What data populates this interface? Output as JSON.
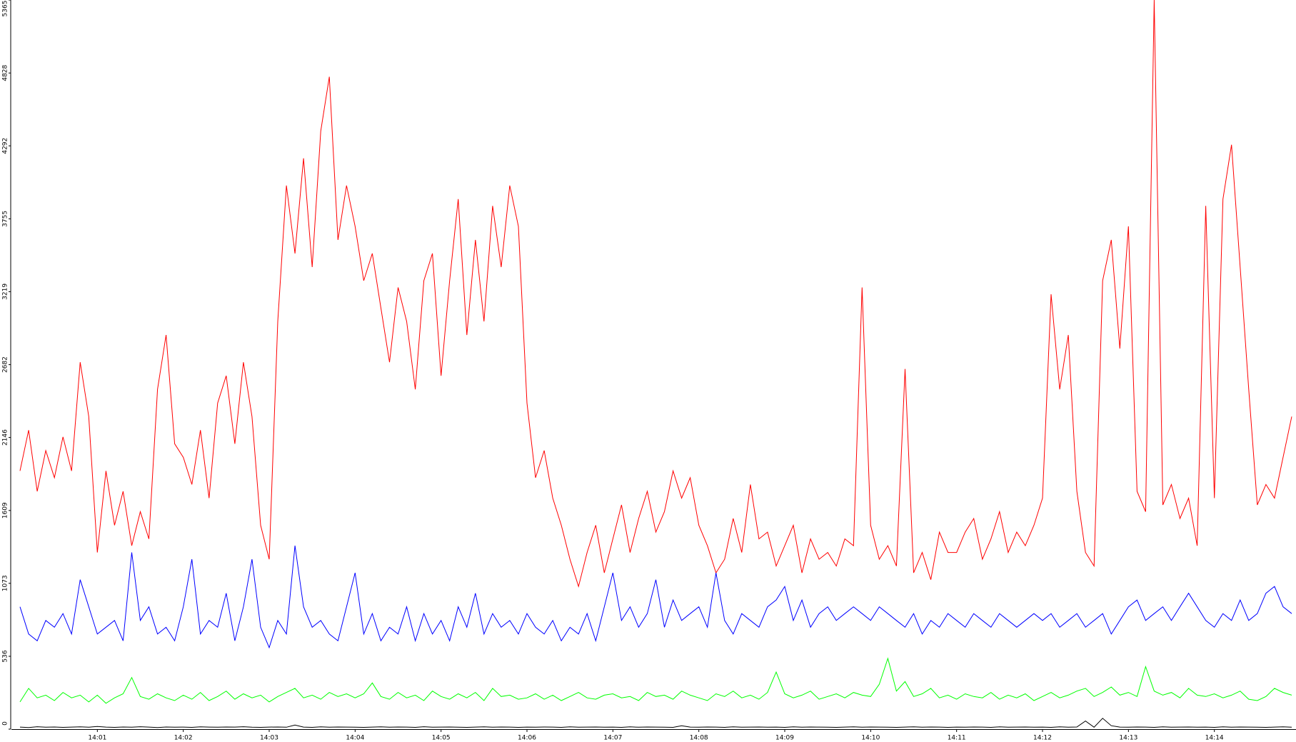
{
  "chart_data": {
    "type": "line",
    "xlim": [
      0,
      14.95
    ],
    "xticks": [
      {
        "value": 1,
        "label": "14:01"
      },
      {
        "value": 2,
        "label": "14:02"
      },
      {
        "value": 3,
        "label": "14:03"
      },
      {
        "value": 4,
        "label": "14:04"
      },
      {
        "value": 5,
        "label": "14:05"
      },
      {
        "value": 6,
        "label": "14:06"
      },
      {
        "value": 7,
        "label": "14:07"
      },
      {
        "value": 8,
        "label": "14:08"
      },
      {
        "value": 9,
        "label": "14:09"
      },
      {
        "value": 10,
        "label": "14:10"
      },
      {
        "value": 11,
        "label": "14:11"
      },
      {
        "value": 12,
        "label": "14:12"
      },
      {
        "value": 13,
        "label": "14:13"
      },
      {
        "value": 14,
        "label": "14:14"
      }
    ],
    "ylim": [
      0,
      5365
    ],
    "yticks": [
      0,
      536,
      1073,
      1609,
      2146,
      2682,
      3219,
      3755,
      4292,
      4828,
      5365
    ],
    "x": [
      0.1,
      0.2,
      0.3,
      0.4,
      0.5,
      0.6,
      0.7,
      0.8,
      0.9,
      1.0,
      1.1,
      1.2,
      1.3,
      1.4,
      1.5,
      1.6,
      1.7,
      1.8,
      1.9,
      2.0,
      2.1,
      2.2,
      2.3,
      2.4,
      2.5,
      2.6,
      2.7,
      2.8,
      2.9,
      3.0,
      3.1,
      3.2,
      3.3,
      3.4,
      3.5,
      3.6,
      3.7,
      3.8,
      3.9,
      4.0,
      4.1,
      4.2,
      4.3,
      4.4,
      4.5,
      4.6,
      4.7,
      4.8,
      4.9,
      5.0,
      5.1,
      5.2,
      5.3,
      5.4,
      5.5,
      5.6,
      5.7,
      5.8,
      5.9,
      6.0,
      6.1,
      6.2,
      6.3,
      6.4,
      6.5,
      6.6,
      6.7,
      6.8,
      6.9,
      7.0,
      7.1,
      7.2,
      7.3,
      7.4,
      7.5,
      7.6,
      7.7,
      7.8,
      7.9,
      8.0,
      8.1,
      8.2,
      8.3,
      8.4,
      8.5,
      8.6,
      8.7,
      8.8,
      8.9,
      9.0,
      9.1,
      9.2,
      9.3,
      9.4,
      9.5,
      9.6,
      9.7,
      9.8,
      9.9,
      10.0,
      10.1,
      10.2,
      10.3,
      10.4,
      10.5,
      10.6,
      10.7,
      10.8,
      10.9,
      11.0,
      11.1,
      11.2,
      11.3,
      11.4,
      11.5,
      11.6,
      11.7,
      11.8,
      11.9,
      12.0,
      12.1,
      12.2,
      12.3,
      12.4,
      12.5,
      12.6,
      12.7,
      12.8,
      12.9,
      13.0,
      13.1,
      13.2,
      13.3,
      13.4,
      13.5,
      13.6,
      13.7,
      13.8,
      13.9,
      14.0,
      14.1,
      14.2,
      14.3,
      14.4,
      14.5,
      14.6,
      14.7,
      14.8,
      14.9
    ],
    "series": [
      {
        "color": "#ff0000",
        "values": [
          1900,
          2200,
          1750,
          2050,
          1850,
          2150,
          1900,
          2700,
          2300,
          1300,
          1900,
          1500,
          1750,
          1350,
          1600,
          1400,
          2500,
          2900,
          2100,
          2000,
          1800,
          2200,
          1700,
          2400,
          2600,
          2100,
          2700,
          2300,
          1500,
          1250,
          3000,
          4000,
          3500,
          4200,
          3400,
          4400,
          4800,
          3600,
          4000,
          3700,
          3300,
          3500,
          3100,
          2700,
          3250,
          3000,
          2500,
          3300,
          3500,
          2600,
          3300,
          3900,
          2900,
          3600,
          3000,
          3850,
          3400,
          4000,
          3700,
          2400,
          1850,
          2050,
          1700,
          1500,
          1250,
          1050,
          1300,
          1500,
          1150,
          1400,
          1650,
          1300,
          1550,
          1750,
          1450,
          1600,
          1900,
          1700,
          1850,
          1500,
          1350,
          1150,
          1250,
          1550,
          1300,
          1800,
          1400,
          1450,
          1200,
          1350,
          1500,
          1150,
          1400,
          1250,
          1300,
          1200,
          1400,
          1350,
          3250,
          1500,
          1250,
          1350,
          1200,
          2650,
          1150,
          1300,
          1100,
          1450,
          1300,
          1300,
          1450,
          1550,
          1250,
          1400,
          1600,
          1300,
          1450,
          1350,
          1500,
          1700,
          3200,
          2500,
          2900,
          1750,
          1300,
          1200,
          3300,
          3600,
          2800,
          3700,
          1750,
          1600,
          5365,
          1650,
          1800,
          1550,
          1700,
          1350,
          3850,
          1700,
          3900,
          4300,
          3400,
          2500,
          1650,
          1800,
          1700,
          2000,
          2300
        ]
      },
      {
        "color": "#0000ff",
        "values": [
          900,
          700,
          650,
          800,
          750,
          850,
          700,
          1100,
          900,
          700,
          750,
          800,
          650,
          1300,
          800,
          900,
          700,
          750,
          650,
          900,
          1250,
          700,
          800,
          750,
          1000,
          650,
          900,
          1250,
          750,
          600,
          800,
          700,
          1350,
          900,
          750,
          800,
          700,
          650,
          900,
          1150,
          700,
          850,
          650,
          750,
          700,
          900,
          650,
          850,
          700,
          800,
          650,
          900,
          750,
          1000,
          700,
          850,
          750,
          800,
          700,
          850,
          750,
          700,
          800,
          650,
          750,
          700,
          850,
          650,
          900,
          1150,
          800,
          900,
          750,
          850,
          1100,
          750,
          950,
          800,
          850,
          900,
          750,
          1150,
          800,
          700,
          850,
          800,
          750,
          900,
          950,
          1050,
          800,
          950,
          750,
          850,
          900,
          800,
          850,
          900,
          850,
          800,
          900,
          850,
          800,
          750,
          850,
          700,
          800,
          750,
          850,
          800,
          750,
          850,
          800,
          750,
          850,
          800,
          750,
          800,
          850,
          800,
          850,
          750,
          800,
          850,
          750,
          800,
          850,
          700,
          800,
          900,
          950,
          800,
          850,
          900,
          800,
          900,
          1000,
          900,
          800,
          750,
          850,
          800,
          950,
          800,
          850,
          1000,
          1050,
          900,
          850
        ]
      },
      {
        "color": "#00ff00",
        "values": [
          200,
          300,
          230,
          250,
          210,
          270,
          230,
          250,
          200,
          250,
          190,
          230,
          260,
          380,
          240,
          220,
          260,
          230,
          210,
          250,
          220,
          270,
          210,
          240,
          280,
          220,
          260,
          230,
          250,
          200,
          240,
          270,
          300,
          230,
          250,
          220,
          270,
          240,
          260,
          230,
          260,
          340,
          240,
          220,
          270,
          230,
          250,
          210,
          280,
          240,
          220,
          260,
          230,
          270,
          210,
          300,
          240,
          250,
          220,
          230,
          260,
          220,
          250,
          210,
          240,
          270,
          230,
          220,
          250,
          260,
          230,
          240,
          210,
          270,
          240,
          250,
          220,
          280,
          250,
          230,
          210,
          260,
          240,
          280,
          230,
          250,
          220,
          270,
          420,
          260,
          230,
          250,
          280,
          220,
          240,
          260,
          230,
          270,
          250,
          240,
          330,
          520,
          280,
          350,
          240,
          260,
          300,
          230,
          250,
          220,
          260,
          240,
          230,
          270,
          220,
          250,
          230,
          260,
          210,
          240,
          270,
          230,
          250,
          280,
          300,
          240,
          270,
          310,
          250,
          270,
          240,
          460,
          280,
          250,
          270,
          230,
          300,
          250,
          240,
          260,
          230,
          250,
          280,
          220,
          210,
          240,
          300,
          270,
          250
        ]
      },
      {
        "color": "#000000",
        "values": [
          15,
          12,
          18,
          14,
          16,
          13,
          15,
          17,
          14,
          20,
          15,
          13,
          16,
          14,
          18,
          15,
          12,
          16,
          14,
          15,
          13,
          17,
          15,
          14,
          16,
          15,
          18,
          14,
          13,
          15,
          16,
          14,
          30,
          15,
          13,
          17,
          14,
          16,
          15,
          14,
          13,
          15,
          17,
          14,
          16,
          15,
          13,
          18,
          14,
          15,
          16,
          14,
          13,
          15,
          17,
          14,
          16,
          15,
          13,
          15,
          14,
          16,
          15,
          13,
          17,
          14,
          15,
          16,
          14,
          15,
          13,
          17,
          14,
          16,
          15,
          14,
          13,
          25,
          15,
          14,
          16,
          15,
          13,
          17,
          14,
          15,
          16,
          14,
          15,
          13,
          17,
          14,
          16,
          15,
          14,
          13,
          15,
          17,
          14,
          16,
          15,
          14,
          13,
          15,
          17,
          14,
          16,
          15,
          13,
          15,
          14,
          16,
          15,
          13,
          17,
          14,
          15,
          16,
          14,
          15,
          13,
          17,
          14,
          16,
          60,
          14,
          80,
          25,
          15,
          14,
          16,
          15,
          13,
          17,
          14,
          15,
          16,
          14,
          15,
          13,
          17,
          14,
          16,
          15,
          14,
          13,
          15,
          17,
          14
        ]
      }
    ]
  }
}
